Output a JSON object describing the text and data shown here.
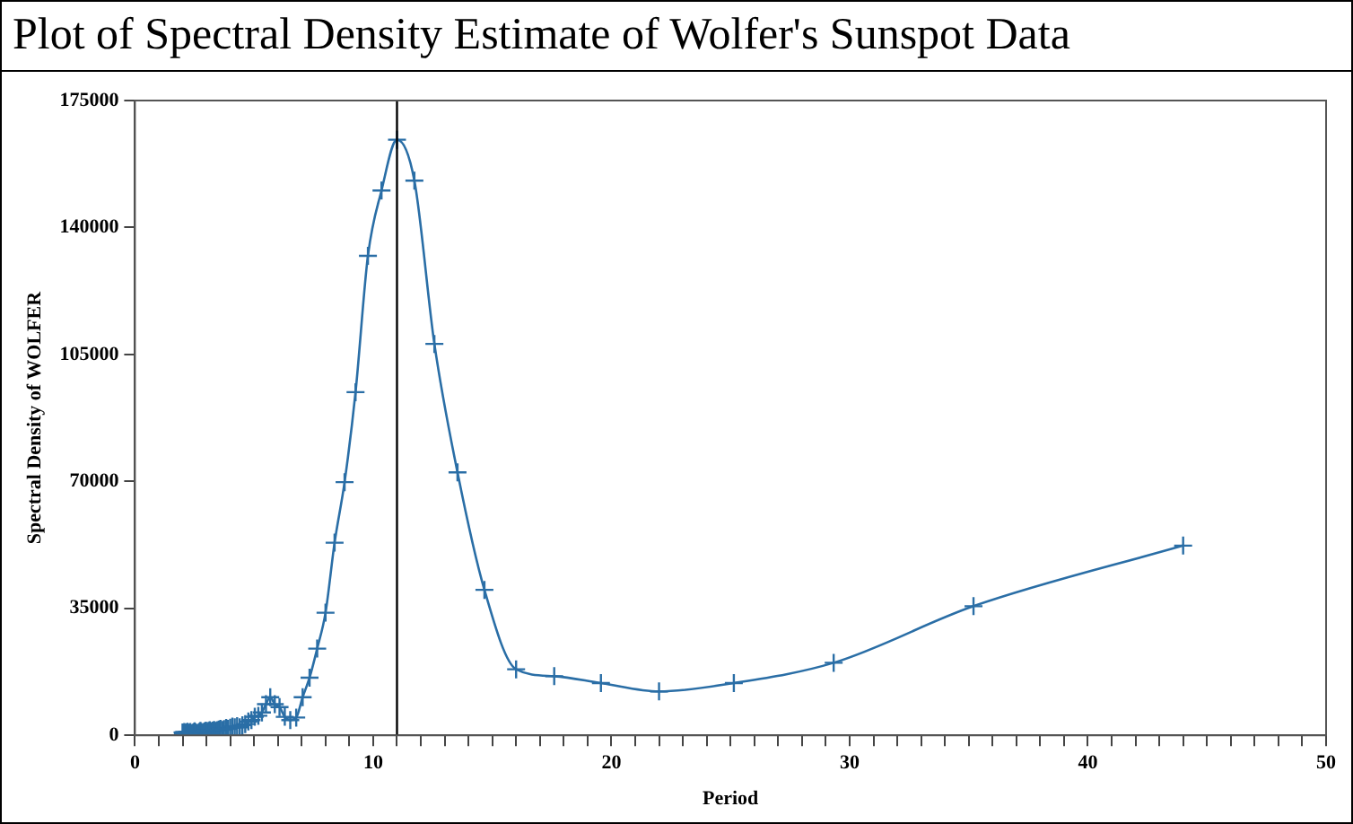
{
  "chart_data": {
    "type": "line",
    "title": "Plot of Spectral Density Estimate of Wolfer's Sunspot Data",
    "xlabel": "Period",
    "ylabel": "Spectral Density of WOLFER",
    "x": [
      2,
      2.02,
      2.05,
      2.07,
      2.1,
      2.12,
      2.15,
      2.17,
      2.2,
      2.23,
      2.26,
      2.29,
      2.32,
      2.35,
      2.38,
      2.41,
      2.44,
      2.48,
      2.51,
      2.55,
      2.59,
      2.63,
      2.67,
      2.71,
      2.75,
      2.79,
      2.84,
      2.89,
      2.93,
      2.98,
      3.03,
      3.09,
      3.14,
      3.2,
      3.26,
      3.32,
      3.38,
      3.45,
      3.52,
      3.59,
      3.67,
      3.74,
      3.83,
      3.91,
      4,
      4.09,
      4.19,
      4.29,
      4.4,
      4.51,
      4.63,
      4.76,
      4.89,
      5.03,
      5.18,
      5.33,
      5.5,
      5.68,
      5.87,
      6.07,
      6.29,
      6.52,
      6.77,
      7.04,
      7.33,
      7.65,
      8,
      8.38,
      8.8,
      9.26,
      9.78,
      10.35,
      11,
      11.73,
      12.57,
      13.54,
      14.67,
      16,
      17.6,
      19.56,
      22,
      25.14,
      29.33,
      35.2,
      44
    ],
    "series": [
      {
        "color": "#2a6ea6",
        "values": [
          800,
          600,
          500,
          900,
          700,
          500,
          400,
          800,
          1000,
          600,
          500,
          700,
          900,
          600,
          500,
          400,
          700,
          900,
          1100,
          800,
          600,
          500,
          700,
          1000,
          1200,
          900,
          700,
          900,
          1100,
          1300,
          1000,
          1200,
          1400,
          1100,
          1300,
          1500,
          1200,
          1400,
          1600,
          1800,
          1500,
          1700,
          2000,
          1800,
          2100,
          2400,
          2200,
          2500,
          2200,
          2800,
          3100,
          3800,
          4200,
          5100,
          5400,
          6300,
          8600,
          10500,
          8600,
          7800,
          5100,
          4200,
          4900,
          10500,
          15900,
          23900,
          33800,
          53100,
          69800,
          94600,
          132200,
          150200,
          164200,
          152900,
          107900,
          72500,
          40100,
          18200,
          16300,
          14400,
          12100,
          14400,
          20000,
          35600,
          52300
        ]
      }
    ],
    "xlim": [
      0,
      50
    ],
    "ylim": [
      0,
      175000
    ],
    "xticks": [
      0,
      {
        "value": 1,
        "label": null
      },
      {
        "value": 2,
        "label": null
      },
      {
        "value": 3,
        "label": null
      },
      {
        "value": 4,
        "label": null
      },
      {
        "value": 5,
        "label": null
      },
      {
        "value": 6,
        "label": null
      },
      {
        "value": 7,
        "label": null
      },
      {
        "value": 8,
        "label": null
      },
      {
        "value": 9,
        "label": null
      },
      10,
      {
        "value": 11,
        "label": null
      },
      {
        "value": 12,
        "label": null
      },
      {
        "value": 13,
        "label": null
      },
      {
        "value": 14,
        "label": null
      },
      {
        "value": 15,
        "label": null
      },
      {
        "value": 16,
        "label": null
      },
      {
        "value": 17,
        "label": null
      },
      {
        "value": 18,
        "label": null
      },
      {
        "value": 19,
        "label": null
      },
      20,
      {
        "value": 21,
        "label": null
      },
      {
        "value": 22,
        "label": null
      },
      {
        "value": 23,
        "label": null
      },
      {
        "value": 24,
        "label": null
      },
      {
        "value": 25,
        "label": null
      },
      {
        "value": 26,
        "label": null
      },
      {
        "value": 27,
        "label": null
      },
      {
        "value": 28,
        "label": null
      },
      {
        "value": 29,
        "label": null
      },
      30,
      {
        "value": 31,
        "label": null
      },
      {
        "value": 32,
        "label": null
      },
      {
        "value": 33,
        "label": null
      },
      {
        "value": 34,
        "label": null
      },
      {
        "value": 35,
        "label": null
      },
      {
        "value": 36,
        "label": null
      },
      {
        "value": 37,
        "label": null
      },
      {
        "value": 38,
        "label": null
      },
      {
        "value": 39,
        "label": null
      },
      40,
      {
        "value": 41,
        "label": null
      },
      {
        "value": 42,
        "label": null
      },
      {
        "value": 43,
        "label": null
      },
      {
        "value": 44,
        "label": null
      },
      {
        "value": 45,
        "label": null
      },
      {
        "value": 46,
        "label": null
      },
      {
        "value": 47,
        "label": null
      },
      {
        "value": 48,
        "label": null
      },
      {
        "value": 49,
        "label": null
      },
      50
    ],
    "yticks": [
      0,
      35000,
      70000,
      105000,
      140000,
      175000
    ],
    "ref_lines": [
      {
        "axis": "x",
        "value": 11,
        "color": "#000000"
      }
    ],
    "marker": "cross",
    "line_style": "solid",
    "grid": false,
    "legend": false
  }
}
